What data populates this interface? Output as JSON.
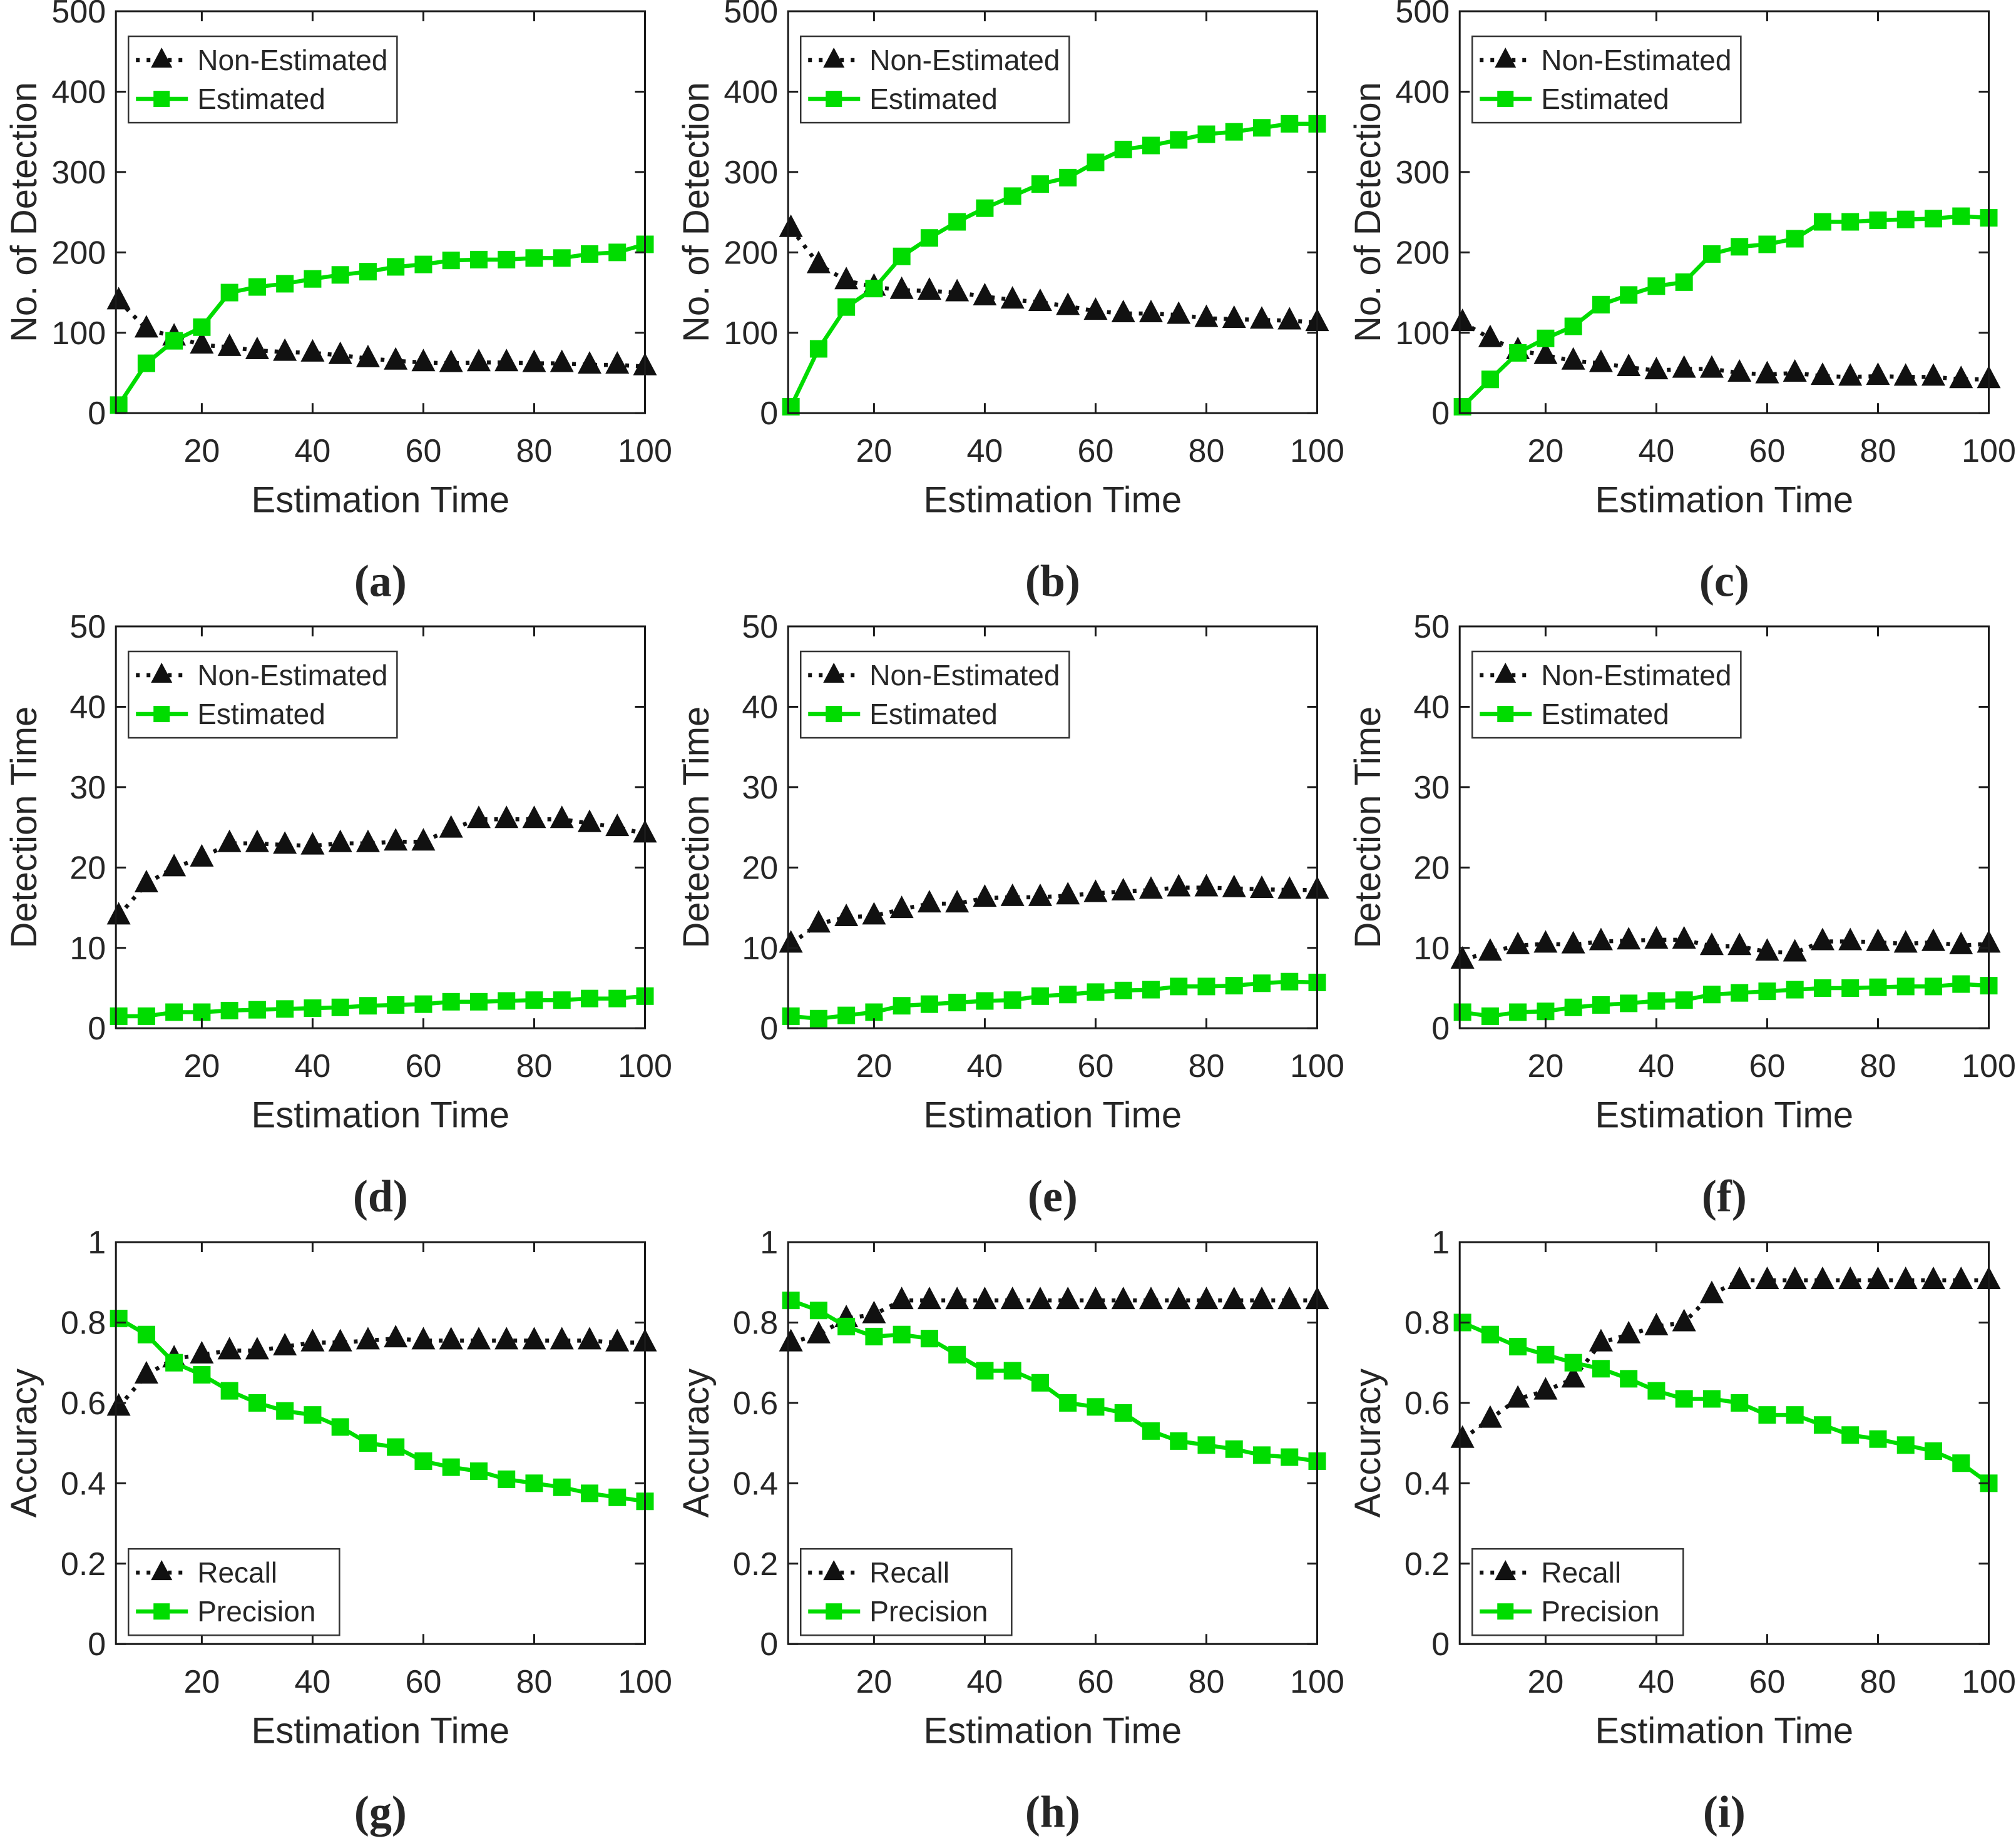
{
  "figure": {
    "background": "#ffffff",
    "text_color": "#262626",
    "axis_color": "#1a1a1a",
    "x_axis_range": [
      4.5,
      100
    ],
    "x_values": [
      5,
      10,
      15,
      20,
      25,
      30,
      35,
      40,
      45,
      50,
      55,
      60,
      65,
      70,
      75,
      80,
      85,
      90,
      95,
      100
    ]
  },
  "chart_data": [
    {
      "id": "a",
      "type": "line",
      "caption": "(a)",
      "xlabel": "Estimation Time",
      "ylabel": "No. of Detection",
      "ylim": [
        0,
        500
      ],
      "yticks": [
        0,
        100,
        200,
        300,
        400,
        500
      ],
      "xticks": [
        20,
        40,
        60,
        80,
        100
      ],
      "grid": false,
      "legend_position": "top-left",
      "series": [
        {
          "name": "Non-Estimated",
          "color": "#111111",
          "marker": "triangle",
          "line": "dotted",
          "values": [
            140,
            105,
            95,
            85,
            82,
            78,
            76,
            75,
            72,
            68,
            65,
            63,
            62,
            63,
            63,
            62,
            62,
            60,
            60,
            58
          ]
        },
        {
          "name": "Estimated",
          "color": "#00DC00",
          "marker": "square",
          "line": "solid",
          "values": [
            10,
            62,
            90,
            107,
            150,
            157,
            161,
            167,
            172,
            176,
            182,
            185,
            190,
            191,
            191,
            193,
            193,
            198,
            200,
            210
          ]
        }
      ]
    },
    {
      "id": "b",
      "type": "line",
      "caption": "(b)",
      "xlabel": "Estimation Time",
      "ylabel": "No. of Detection",
      "ylim": [
        0,
        500
      ],
      "yticks": [
        0,
        100,
        200,
        300,
        400,
        500
      ],
      "xticks": [
        20,
        40,
        60,
        80,
        100
      ],
      "grid": false,
      "legend_position": "top-left",
      "series": [
        {
          "name": "Non-Estimated",
          "color": "#111111",
          "marker": "triangle",
          "line": "dotted",
          "values": [
            230,
            185,
            165,
            157,
            153,
            152,
            150,
            145,
            141,
            138,
            133,
            127,
            124,
            124,
            122,
            118,
            117,
            116,
            115,
            113
          ]
        },
        {
          "name": "Estimated",
          "color": "#00DC00",
          "marker": "square",
          "line": "solid",
          "values": [
            8,
            80,
            132,
            155,
            195,
            218,
            238,
            255,
            270,
            285,
            293,
            312,
            328,
            333,
            340,
            347,
            350,
            355,
            360,
            360
          ]
        }
      ]
    },
    {
      "id": "c",
      "type": "line",
      "caption": "(c)",
      "xlabel": "Estimation Time",
      "ylabel": "No. of Detection",
      "ylim": [
        0,
        500
      ],
      "yticks": [
        0,
        100,
        200,
        300,
        400,
        500
      ],
      "xticks": [
        20,
        40,
        60,
        80,
        100
      ],
      "grid": false,
      "legend_position": "top-left",
      "series": [
        {
          "name": "Non-Estimated",
          "color": "#111111",
          "marker": "triangle",
          "line": "dotted",
          "values": [
            113,
            93,
            78,
            72,
            65,
            62,
            57,
            53,
            55,
            55,
            50,
            48,
            50,
            46,
            45,
            46,
            45,
            45,
            42,
            42
          ]
        },
        {
          "name": "Estimated",
          "color": "#00DC00",
          "marker": "square",
          "line": "solid",
          "values": [
            8,
            42,
            75,
            93,
            108,
            135,
            147,
            158,
            163,
            198,
            207,
            210,
            217,
            238,
            238,
            240,
            241,
            242,
            245,
            243
          ]
        }
      ]
    },
    {
      "id": "d",
      "type": "line",
      "caption": "(d)",
      "xlabel": "Estimation Time",
      "ylabel": "Detection Time",
      "ylim": [
        0,
        50
      ],
      "yticks": [
        0,
        10,
        20,
        30,
        40,
        50
      ],
      "xticks": [
        20,
        40,
        60,
        80,
        100
      ],
      "grid": false,
      "legend_position": "top-left",
      "series": [
        {
          "name": "Non-Estimated",
          "color": "#111111",
          "marker": "triangle",
          "line": "dotted",
          "values": [
            14,
            18,
            20,
            21.2,
            23,
            23,
            22.8,
            22.7,
            23,
            23,
            23.2,
            23.2,
            24.8,
            26,
            26,
            26,
            26,
            25.5,
            25,
            24.2
          ]
        },
        {
          "name": "Estimated",
          "color": "#00DC00",
          "marker": "square",
          "line": "solid",
          "values": [
            1.5,
            1.5,
            2,
            2,
            2.2,
            2.3,
            2.4,
            2.5,
            2.6,
            2.8,
            2.9,
            3,
            3.3,
            3.3,
            3.4,
            3.5,
            3.5,
            3.7,
            3.7,
            4
          ]
        }
      ]
    },
    {
      "id": "e",
      "type": "line",
      "caption": "(e)",
      "xlabel": "Estimation Time",
      "ylabel": "Detection Time",
      "ylim": [
        0,
        50
      ],
      "yticks": [
        0,
        10,
        20,
        30,
        40,
        50
      ],
      "xticks": [
        20,
        40,
        60,
        80,
        100
      ],
      "grid": false,
      "legend_position": "top-left",
      "series": [
        {
          "name": "Non-Estimated",
          "color": "#111111",
          "marker": "triangle",
          "line": "dotted",
          "values": [
            10.5,
            13,
            13.8,
            14,
            14.8,
            15.5,
            15.5,
            16.2,
            16.3,
            16.3,
            16.5,
            16.8,
            17,
            17.2,
            17.5,
            17.5,
            17.4,
            17.3,
            17.2,
            17.2
          ]
        },
        {
          "name": "Estimated",
          "color": "#00DC00",
          "marker": "square",
          "line": "solid",
          "values": [
            1.5,
            1.2,
            1.6,
            2,
            2.8,
            3,
            3.2,
            3.4,
            3.5,
            4,
            4.2,
            4.5,
            4.7,
            4.8,
            5.2,
            5.2,
            5.3,
            5.6,
            5.8,
            5.7
          ]
        }
      ]
    },
    {
      "id": "f",
      "type": "line",
      "caption": "(f)",
      "xlabel": "Estimation Time",
      "ylabel": "Detection Time",
      "ylim": [
        0,
        50
      ],
      "yticks": [
        0,
        10,
        20,
        30,
        40,
        50
      ],
      "xticks": [
        20,
        40,
        60,
        80,
        100
      ],
      "grid": false,
      "legend_position": "top-left",
      "series": [
        {
          "name": "Non-Estimated",
          "color": "#111111",
          "marker": "triangle",
          "line": "dotted",
          "values": [
            8.5,
            9.5,
            10.3,
            10.5,
            10.4,
            10.8,
            10.9,
            11,
            11,
            10.2,
            10.2,
            9.5,
            9.4,
            10.8,
            10.8,
            10.7,
            10.5,
            10.7,
            10.3,
            10.5
          ]
        },
        {
          "name": "Estimated",
          "color": "#00DC00",
          "marker": "square",
          "line": "solid",
          "values": [
            2,
            1.5,
            2,
            2.1,
            2.6,
            2.9,
            3.1,
            3.4,
            3.5,
            4.2,
            4.4,
            4.6,
            4.8,
            5,
            5,
            5.1,
            5.2,
            5.2,
            5.5,
            5.3
          ]
        }
      ]
    },
    {
      "id": "g",
      "type": "line",
      "caption": "(g)",
      "xlabel": "Estimation Time",
      "ylabel": "Accuracy",
      "ylim": [
        0,
        1
      ],
      "yticks": [
        0,
        0.2,
        0.4,
        0.6,
        0.8,
        1
      ],
      "xticks": [
        20,
        40,
        60,
        80,
        100
      ],
      "grid": false,
      "legend_position": "bottom-left",
      "series": [
        {
          "name": "Recall",
          "color": "#111111",
          "marker": "triangle",
          "line": "dotted",
          "values": [
            0.59,
            0.67,
            0.71,
            0.72,
            0.73,
            0.73,
            0.74,
            0.75,
            0.75,
            0.755,
            0.76,
            0.755,
            0.755,
            0.755,
            0.755,
            0.755,
            0.755,
            0.755,
            0.75,
            0.75
          ]
        },
        {
          "name": "Precision",
          "color": "#00DC00",
          "marker": "square",
          "line": "solid",
          "values": [
            0.81,
            0.77,
            0.7,
            0.67,
            0.63,
            0.6,
            0.58,
            0.57,
            0.54,
            0.5,
            0.49,
            0.455,
            0.44,
            0.43,
            0.41,
            0.4,
            0.39,
            0.375,
            0.365,
            0.355
          ]
        }
      ]
    },
    {
      "id": "h",
      "type": "line",
      "caption": "(h)",
      "xlabel": "Estimation Time",
      "ylabel": "Accuracy",
      "ylim": [
        0,
        1
      ],
      "yticks": [
        0,
        0.2,
        0.4,
        0.6,
        0.8,
        1
      ],
      "xticks": [
        20,
        40,
        60,
        80,
        100
      ],
      "grid": false,
      "legend_position": "bottom-left",
      "series": [
        {
          "name": "Recall",
          "color": "#111111",
          "marker": "triangle",
          "line": "dotted",
          "values": [
            0.75,
            0.77,
            0.81,
            0.82,
            0.855,
            0.855,
            0.855,
            0.855,
            0.855,
            0.855,
            0.855,
            0.855,
            0.855,
            0.855,
            0.855,
            0.855,
            0.855,
            0.855,
            0.855,
            0.855
          ]
        },
        {
          "name": "Precision",
          "color": "#00DC00",
          "marker": "square",
          "line": "solid",
          "values": [
            0.855,
            0.83,
            0.79,
            0.765,
            0.77,
            0.76,
            0.72,
            0.68,
            0.68,
            0.65,
            0.6,
            0.59,
            0.575,
            0.53,
            0.505,
            0.495,
            0.485,
            0.47,
            0.465,
            0.455
          ]
        }
      ]
    },
    {
      "id": "i",
      "type": "line",
      "caption": "(i)",
      "xlabel": "Estimation Time",
      "ylabel": "Accuracy",
      "ylim": [
        0,
        1
      ],
      "yticks": [
        0,
        0.2,
        0.4,
        0.6,
        0.8,
        1
      ],
      "xticks": [
        20,
        40,
        60,
        80,
        100
      ],
      "grid": false,
      "legend_position": "bottom-left",
      "series": [
        {
          "name": "Recall",
          "color": "#111111",
          "marker": "triangle",
          "line": "dotted",
          "values": [
            0.51,
            0.56,
            0.61,
            0.63,
            0.66,
            0.75,
            0.77,
            0.79,
            0.8,
            0.87,
            0.905,
            0.905,
            0.905,
            0.905,
            0.905,
            0.905,
            0.905,
            0.905,
            0.905,
            0.905
          ]
        },
        {
          "name": "Precision",
          "color": "#00DC00",
          "marker": "square",
          "line": "solid",
          "values": [
            0.8,
            0.77,
            0.74,
            0.72,
            0.7,
            0.685,
            0.66,
            0.63,
            0.61,
            0.61,
            0.6,
            0.57,
            0.57,
            0.545,
            0.52,
            0.51,
            0.495,
            0.48,
            0.45,
            0.4
          ]
        }
      ]
    }
  ]
}
